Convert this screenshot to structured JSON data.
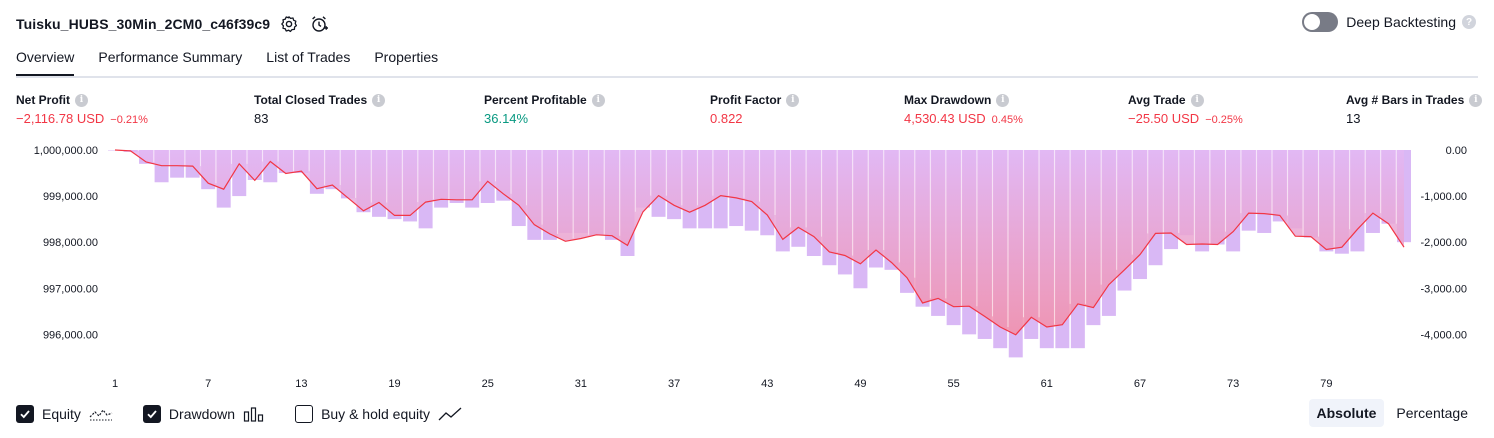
{
  "header": {
    "strategy_name": "Tuisku_HUBS_30Min_2CM0_c46f39c9",
    "deep_backtesting_label": "Deep Backtesting",
    "deep_backtesting_enabled": false
  },
  "tabs": [
    {
      "label": "Overview",
      "active": true
    },
    {
      "label": "Performance Summary",
      "active": false
    },
    {
      "label": "List of Trades",
      "active": false
    },
    {
      "label": "Properties",
      "active": false
    }
  ],
  "stats": [
    {
      "label": "Net Profit",
      "value": "−2,116.78 USD",
      "sub": "−0.21%",
      "tone": "neg"
    },
    {
      "label": "Total Closed Trades",
      "value": "83",
      "sub": "",
      "tone": "neu"
    },
    {
      "label": "Percent Profitable",
      "value": "36.14%",
      "sub": "",
      "tone": "pos"
    },
    {
      "label": "Profit Factor",
      "value": "0.822",
      "sub": "",
      "tone": "neg"
    },
    {
      "label": "Max Drawdown",
      "value": "4,530.43 USD",
      "sub": "0.45%",
      "tone": "neg"
    },
    {
      "label": "Avg Trade",
      "value": "−25.50 USD",
      "sub": "−0.25%",
      "tone": "neg"
    },
    {
      "label": "Avg # Bars in Trades",
      "value": "13",
      "sub": "",
      "tone": "neu"
    }
  ],
  "legend": {
    "equity_label": "Equity",
    "drawdown_label": "Drawdown",
    "buyhold_label": "Buy & hold equity",
    "equity_checked": true,
    "drawdown_checked": true,
    "buyhold_checked": false
  },
  "mode": {
    "absolute_label": "Absolute",
    "percentage_label": "Percentage",
    "selected": "Absolute"
  },
  "colors": {
    "equity_line": "#f23645",
    "drawdown_bar": "#d9b8f5",
    "area_top": "#e3b8f4",
    "area_bottom": "#f28fa8",
    "axis_text": "#131722"
  },
  "chart_data": {
    "type": "area",
    "x_ticks": [
      1,
      7,
      13,
      19,
      25,
      31,
      37,
      43,
      49,
      55,
      61,
      67,
      73,
      79
    ],
    "left_axis": {
      "min": 995400,
      "max": 1000000,
      "ticks": [
        "1,000,000.00",
        "999,000.00",
        "998,000.00",
        "997,000.00",
        "996,000.00"
      ],
      "tick_values": [
        1000000,
        999000,
        998000,
        997000,
        996000
      ]
    },
    "right_axis": {
      "min": -4600,
      "max": 0,
      "ticks": [
        "0.00",
        "-1,000.00",
        "-2,000.00",
        "-3,000.00",
        "-4,000.00"
      ],
      "tick_values": [
        0,
        -1000,
        -2000,
        -3000,
        -4000
      ]
    },
    "series": [
      {
        "name": "Equity",
        "x": [
          1,
          2,
          3,
          4,
          5,
          6,
          7,
          8,
          9,
          10,
          11,
          12,
          13,
          14,
          15,
          16,
          17,
          18,
          19,
          20,
          21,
          22,
          23,
          24,
          25,
          26,
          27,
          28,
          29,
          30,
          31,
          32,
          33,
          34,
          35,
          36,
          37,
          38,
          39,
          40,
          41,
          42,
          43,
          44,
          45,
          46,
          47,
          48,
          49,
          50,
          51,
          52,
          53,
          54,
          55,
          56,
          57,
          58,
          59,
          60,
          61,
          62,
          63,
          64,
          65,
          66,
          67,
          68,
          69,
          70,
          71,
          72,
          73,
          74,
          75,
          76,
          77,
          78,
          79,
          80,
          81,
          82,
          83,
          84
        ],
        "values": [
          1000000,
          999980,
          999740,
          999660,
          999660,
          999650,
          999280,
          999150,
          999700,
          999340,
          999750,
          999490,
          999540,
          999160,
          999240,
          998960,
          998680,
          998860,
          998580,
          998580,
          998870,
          998930,
          998920,
          998920,
          999320,
          999050,
          998800,
          998380,
          998180,
          998020,
          998080,
          998160,
          998140,
          997930,
          998660,
          999010,
          998800,
          998650,
          998800,
          999010,
          998960,
          998880,
          998590,
          998060,
          998320,
          998120,
          997790,
          997710,
          997530,
          997830,
          997560,
          997230,
          996680,
          996780,
          996600,
          996610,
          996390,
          996160,
          995990,
          996370,
          996160,
          996210,
          996660,
          996580,
          997080,
          997400,
          997730,
          998190,
          998200,
          997950,
          997960,
          997950,
          998230,
          998630,
          998620,
          998580,
          998130,
          998120,
          997840,
          997890,
          998280,
          998630,
          998400,
          997890
        ]
      },
      {
        "name": "Drawdown",
        "x": [
          1,
          2,
          3,
          4,
          5,
          6,
          7,
          8,
          9,
          10,
          11,
          12,
          13,
          14,
          15,
          16,
          17,
          18,
          19,
          20,
          21,
          22,
          23,
          24,
          25,
          26,
          27,
          28,
          29,
          30,
          31,
          32,
          33,
          34,
          35,
          36,
          37,
          38,
          39,
          40,
          41,
          42,
          43,
          44,
          45,
          46,
          47,
          48,
          49,
          50,
          51,
          52,
          53,
          54,
          55,
          56,
          57,
          58,
          59,
          60,
          61,
          62,
          63,
          64,
          65,
          66,
          67,
          68,
          69,
          70,
          71,
          72,
          73,
          74,
          75,
          76,
          77,
          78,
          79,
          80,
          81,
          82,
          83,
          84
        ],
        "values": [
          0,
          -40,
          -300,
          -700,
          -600,
          -600,
          -850,
          -1250,
          -1000,
          -650,
          -700,
          -500,
          -500,
          -950,
          -850,
          -1050,
          -1350,
          -1450,
          -1500,
          -1550,
          -1700,
          -1250,
          -1150,
          -1250,
          -1150,
          -1100,
          -1650,
          -1950,
          -1950,
          -1800,
          -1800,
          -1850,
          -1950,
          -2300,
          -1250,
          -1450,
          -1500,
          -1700,
          -1700,
          -1700,
          -1650,
          -1750,
          -1850,
          -2200,
          -2100,
          -2300,
          -2500,
          -2700,
          -3000,
          -2550,
          -2600,
          -3100,
          -3400,
          -3600,
          -3800,
          -4000,
          -4100,
          -4300,
          -4500,
          -4100,
          -4300,
          -4300,
          -4300,
          -3800,
          -3600,
          -3050,
          -2800,
          -2500,
          -2150,
          -1850,
          -2200,
          -2050,
          -2200,
          -1750,
          -1800,
          -1550,
          -1700,
          -1900,
          -2200,
          -2250,
          -2200,
          -1800,
          -1600,
          -2000
        ]
      }
    ]
  }
}
